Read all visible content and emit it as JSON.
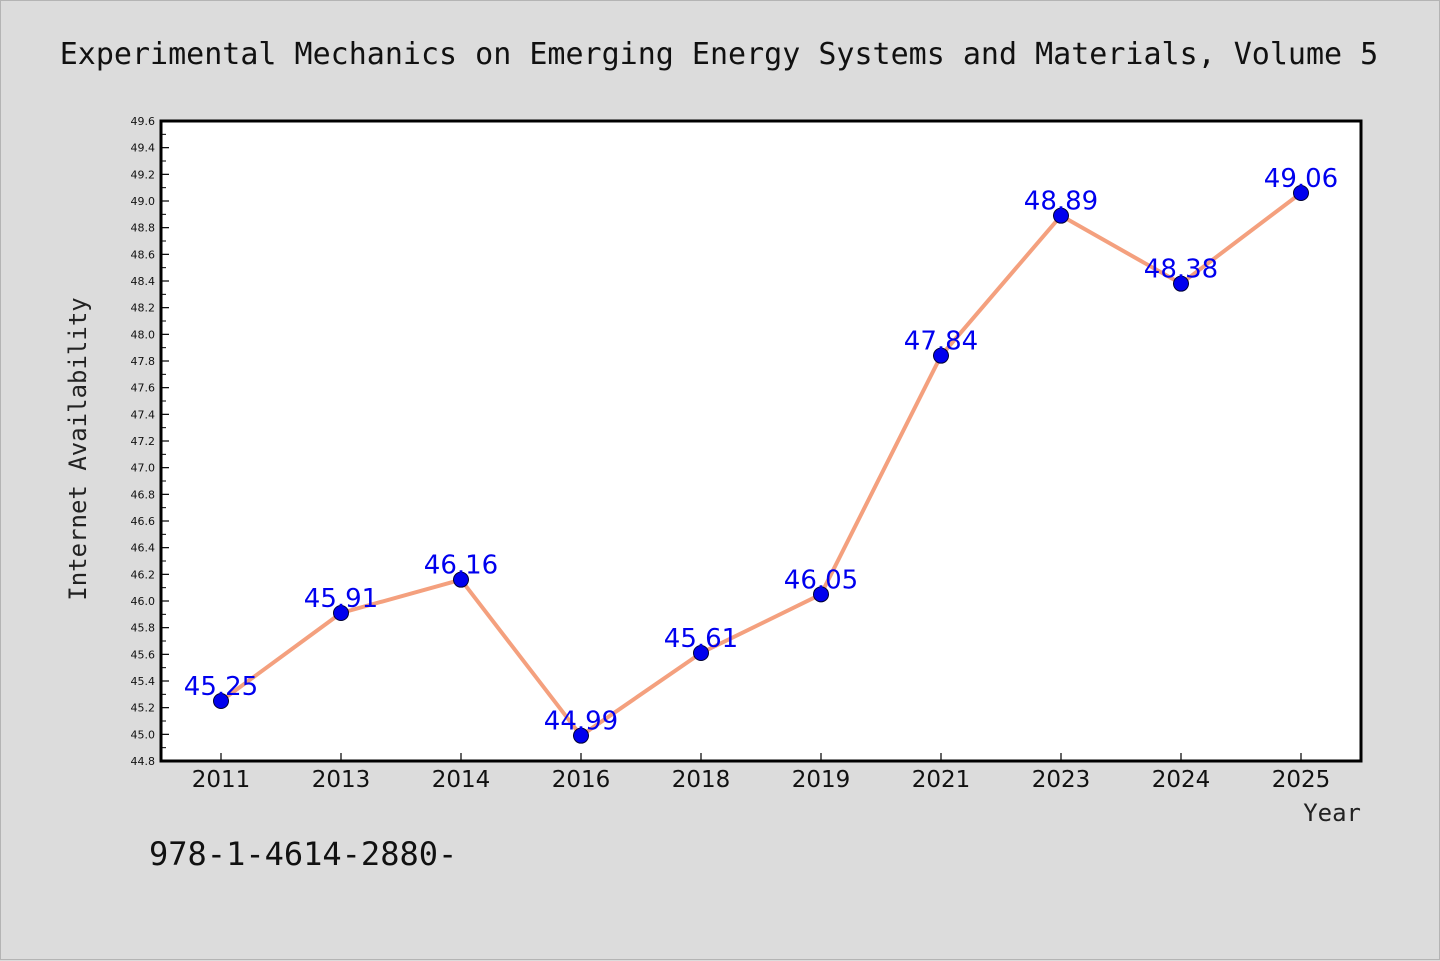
{
  "title": "Experimental Mechanics on Emerging Energy Systems and Materials, Volume 5",
  "footer": "978-1-4614-2880-",
  "colors": {
    "background": "#dcdcdc",
    "plot_area": "#ffffff",
    "line": "#f4a07e",
    "marker": "#0000ee",
    "label": "#0000ee"
  },
  "chart_data": {
    "type": "line",
    "xlabel": "Year",
    "ylabel": "Internet Availability",
    "categories": [
      "2011",
      "2013",
      "2014",
      "2016",
      "2018",
      "2019",
      "2021",
      "2023",
      "2024",
      "2025"
    ],
    "series": [
      {
        "values": [
          45.25,
          45.91,
          46.16,
          44.99,
          45.61,
          46.05,
          47.84,
          48.89,
          48.38,
          49.06
        ],
        "labels": [
          "45.25",
          "45.91",
          "46.16",
          "44.99",
          "45.61",
          "46.05",
          "47.84",
          "48.89",
          "48.38",
          "49.06"
        ]
      }
    ],
    "ylim": [
      44.8,
      49.6
    ],
    "yticks": [
      "44.8",
      "45.0",
      "45.2",
      "45.4",
      "45.6",
      "45.8",
      "46.0",
      "46.2",
      "46.4",
      "46.6",
      "46.8",
      "47.0",
      "47.2",
      "47.4",
      "47.6",
      "47.8",
      "48.0",
      "48.2",
      "48.4",
      "48.6",
      "48.8",
      "49.0",
      "49.2",
      "49.4",
      "49.6"
    ],
    "grid": false,
    "legend": "none"
  }
}
